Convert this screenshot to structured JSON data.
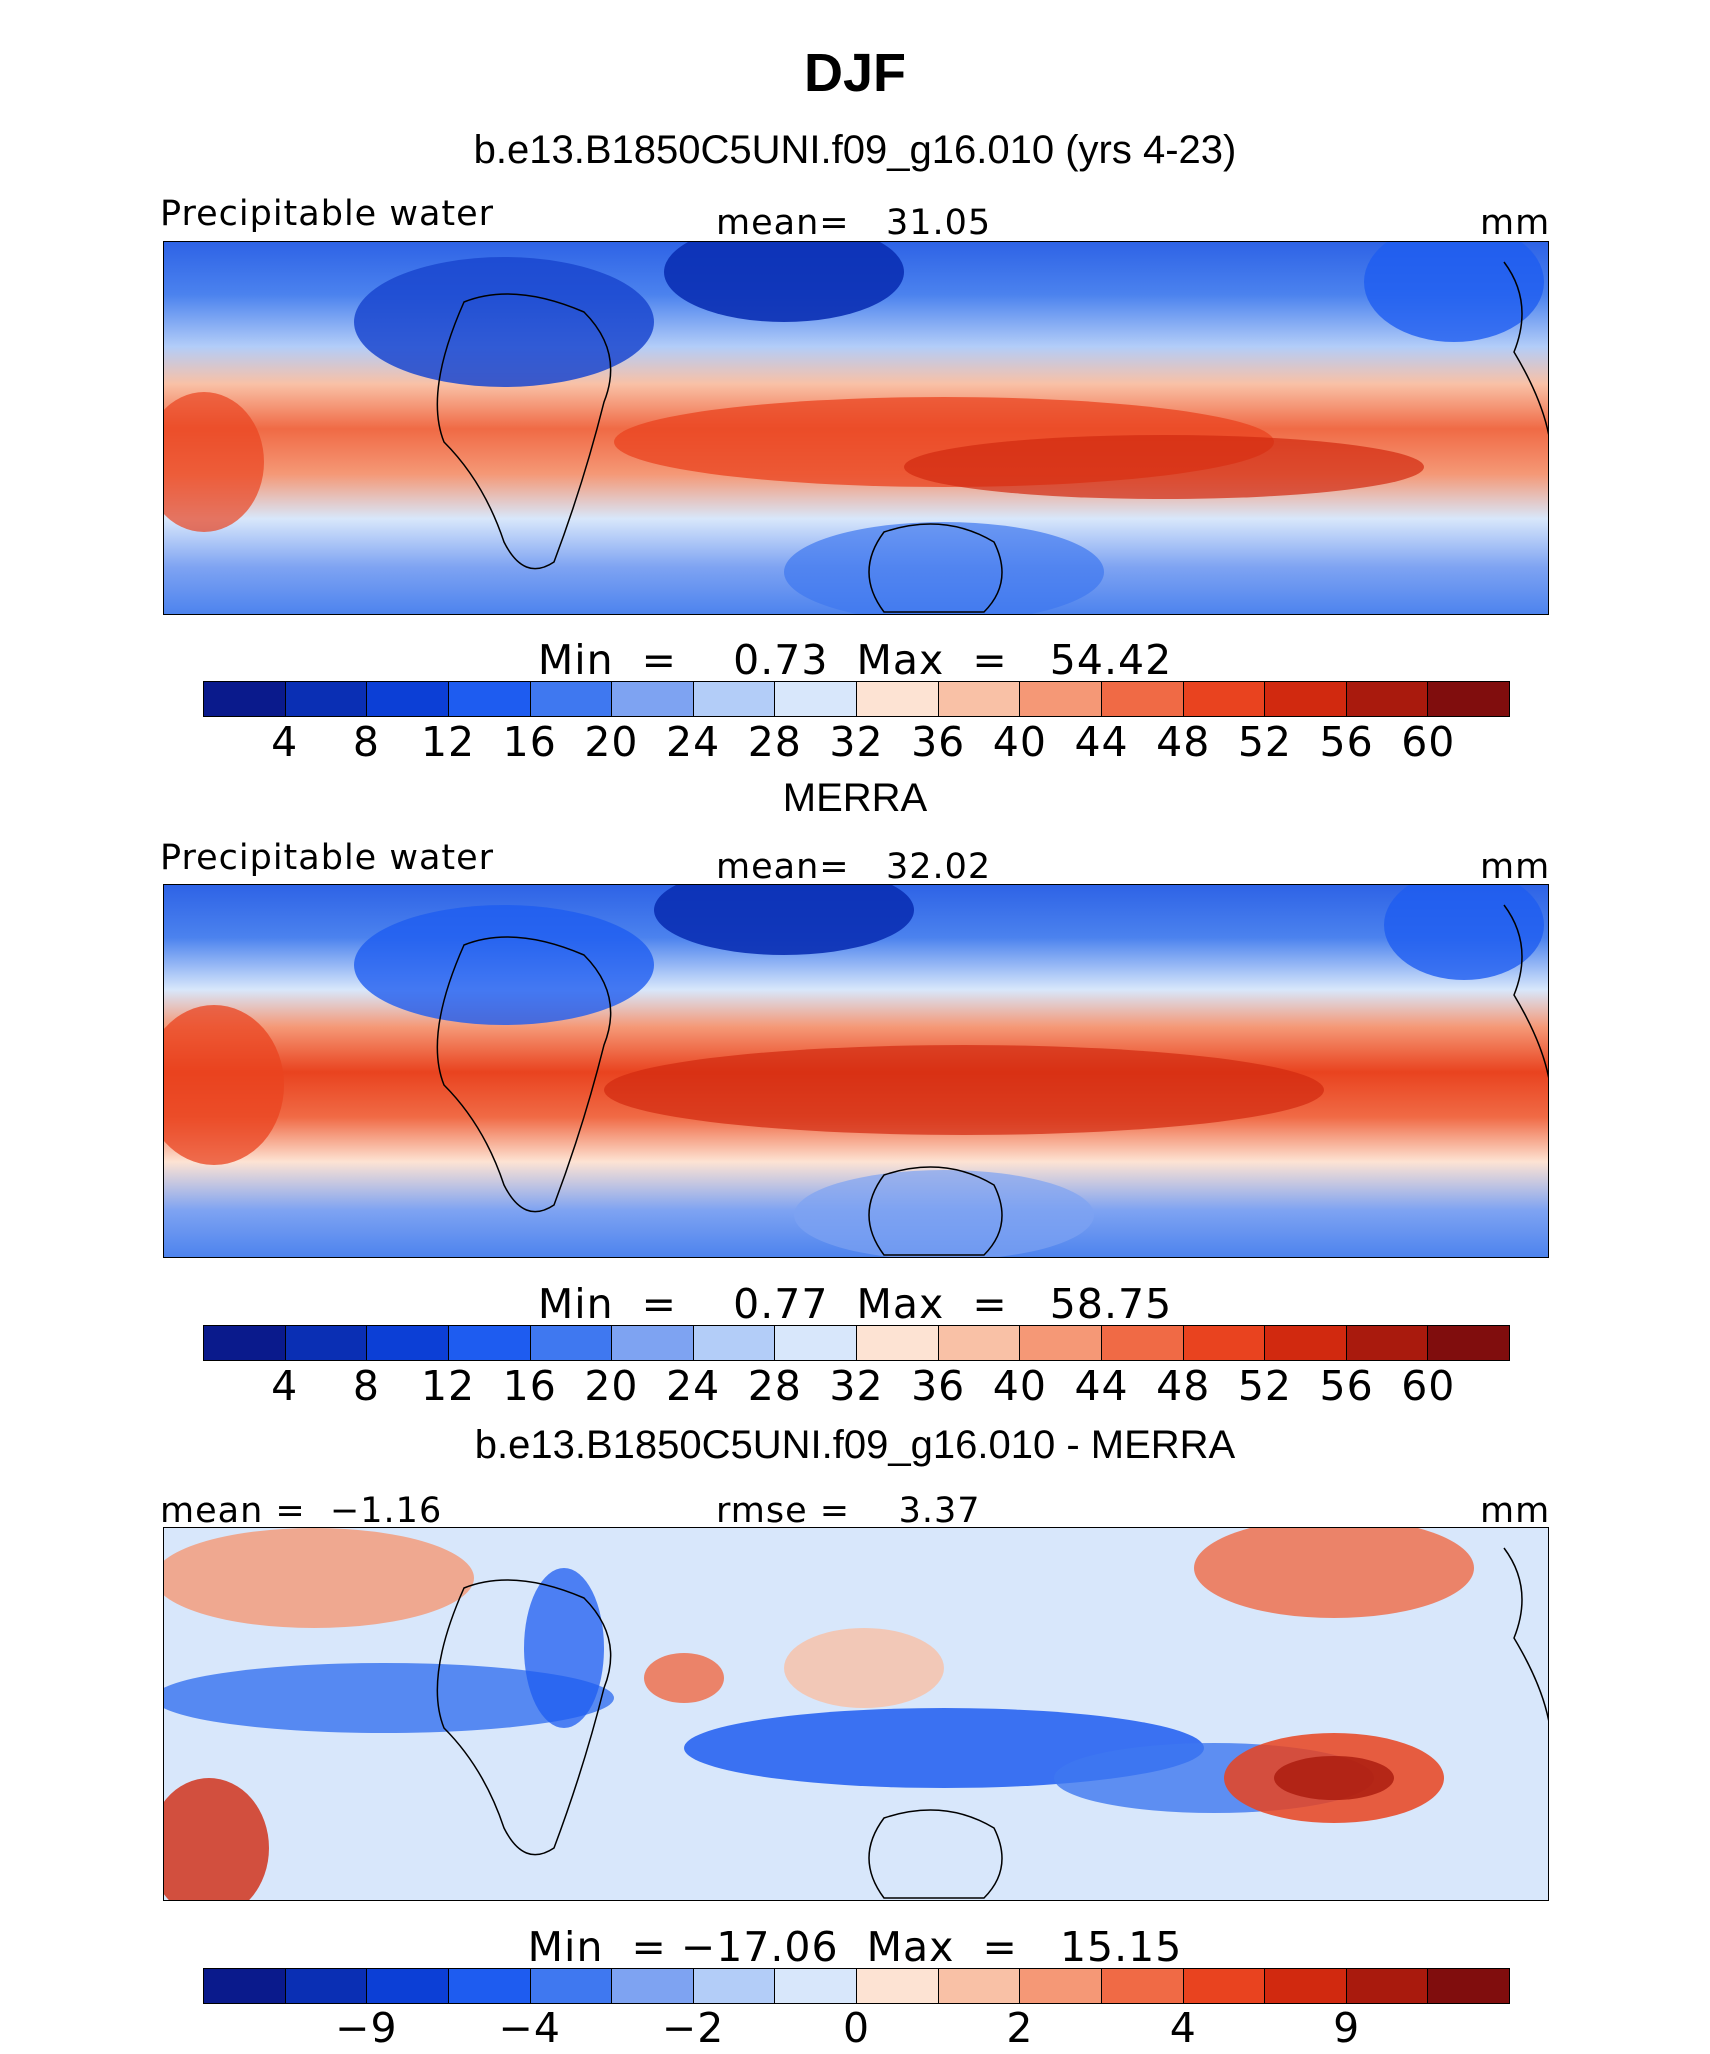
{
  "title": "DJF",
  "panels": [
    {
      "heading": "b.e13.B1850C5UNI.f09_g16.010 (yrs 4-23)",
      "left_label": "Precipitable water",
      "center_label": "mean=   31.05",
      "right_label": "mm",
      "minmax": "Min  =    0.73  Max  =   54.42",
      "colorbar": {
        "colors": [
          "#0a1a8c",
          "#0a2fb4",
          "#0c3fd6",
          "#1e5cf0",
          "#3f78f0",
          "#7ea3f2",
          "#b3cdf8",
          "#d8e7fb",
          "#fde3d3",
          "#f9c1a6",
          "#f59876",
          "#f06a45",
          "#e9431f",
          "#d1290f",
          "#a91a0d",
          "#800d0d"
        ],
        "ticks": [
          "4",
          "8",
          "12",
          "16",
          "20",
          "24",
          "28",
          "32",
          "36",
          "40",
          "44",
          "48",
          "52",
          "56",
          "60"
        ]
      }
    },
    {
      "heading": "MERRA",
      "left_label": "Precipitable water",
      "center_label": "mean=   32.02",
      "right_label": "mm",
      "minmax": "Min  =    0.77  Max  =   58.75",
      "colorbar": {
        "colors": [
          "#0a1a8c",
          "#0a2fb4",
          "#0c3fd6",
          "#1e5cf0",
          "#3f78f0",
          "#7ea3f2",
          "#b3cdf8",
          "#d8e7fb",
          "#fde3d3",
          "#f9c1a6",
          "#f59876",
          "#f06a45",
          "#e9431f",
          "#d1290f",
          "#a91a0d",
          "#800d0d"
        ],
        "ticks": [
          "4",
          "8",
          "12",
          "16",
          "20",
          "24",
          "28",
          "32",
          "36",
          "40",
          "44",
          "48",
          "52",
          "56",
          "60"
        ]
      }
    },
    {
      "heading": "b.e13.B1850C5UNI.f09_g16.010 - MERRA",
      "left_label": "mean =  −1.16",
      "center_label": "rmse =    3.37",
      "right_label": "mm",
      "minmax": "Min  = −17.06  Max  =   15.15",
      "colorbar": {
        "colors": [
          "#0a1a8c",
          "#0a2fb4",
          "#0c3fd6",
          "#1e5cf0",
          "#3f78f0",
          "#7ea3f2",
          "#b3cdf8",
          "#d8e7fb",
          "#fde3d3",
          "#f9c1a6",
          "#f59876",
          "#f06a45",
          "#e9431f",
          "#d1290f",
          "#a91a0d",
          "#800d0d"
        ],
        "ticks": [
          "−9",
          "−4",
          "−2",
          "0",
          "2",
          "4",
          "9"
        ]
      }
    }
  ]
}
